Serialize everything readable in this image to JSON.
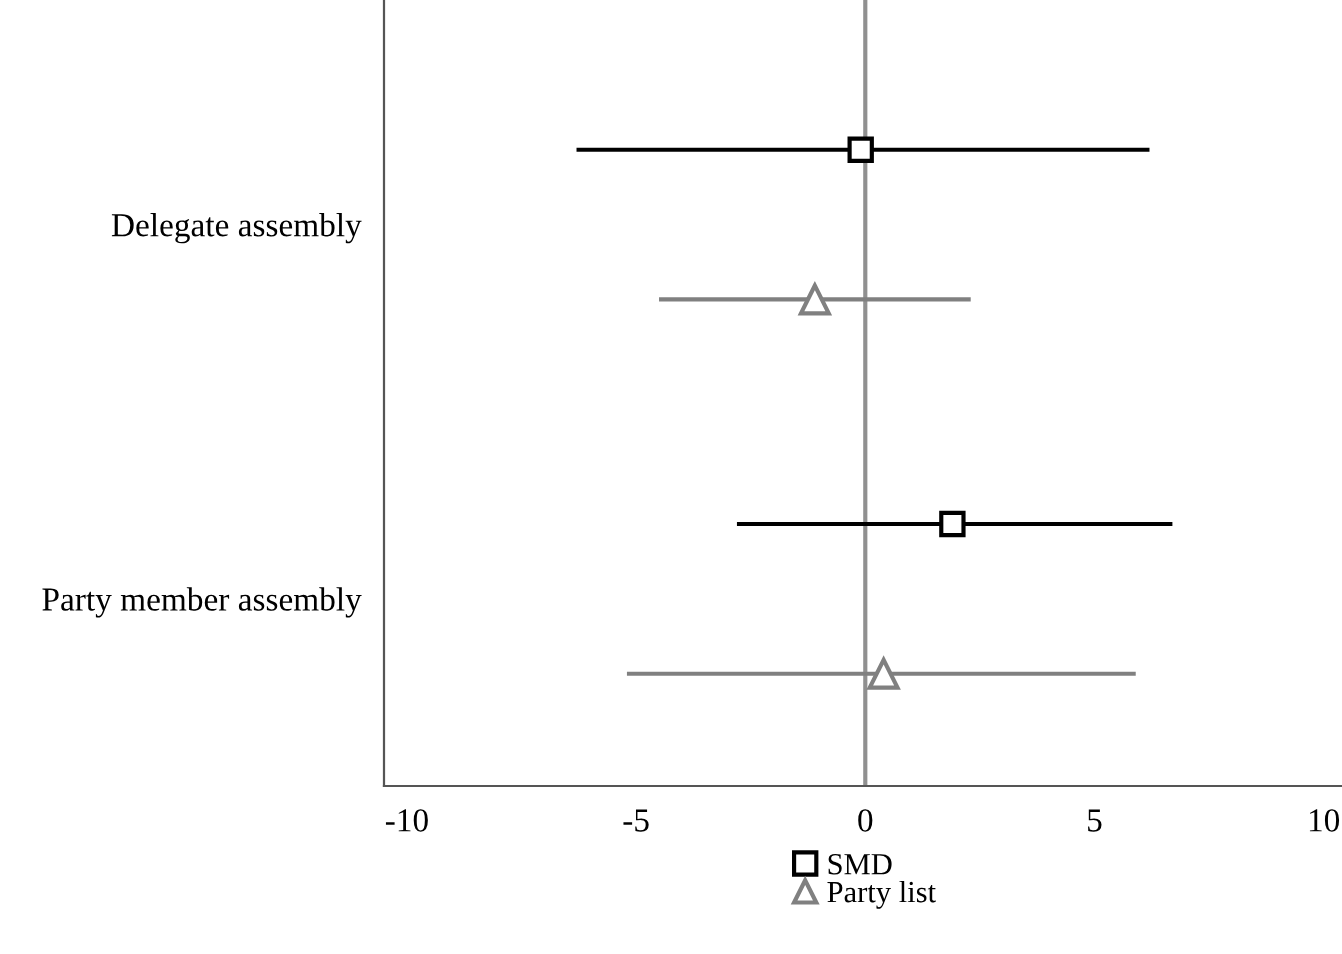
{
  "chart_data": {
    "type": "scatter",
    "orientation": "horizontal",
    "categories": [
      "Delegate assembly",
      "Party member assembly"
    ],
    "series": [
      {
        "name": "SMD",
        "color": "#000000",
        "marker": "square",
        "values": [
          -0.1,
          1.9
        ],
        "errors": [
          [
            -6.3,
            6.2
          ],
          [
            -2.8,
            6.7
          ]
        ]
      },
      {
        "name": "Party list",
        "color": "#808080",
        "marker": "triangle",
        "values": [
          -1.1,
          0.4
        ],
        "errors": [
          [
            -4.5,
            2.3
          ],
          [
            -5.2,
            5.9
          ]
        ]
      }
    ],
    "xlim": [
      -10.5,
      10.4
    ],
    "xticks": [
      -10,
      -5,
      0,
      5,
      10
    ],
    "ref_lines": [
      {
        "axis": "x",
        "value": 0,
        "color": "#909090"
      }
    ],
    "grid": false,
    "legend": "bottom"
  }
}
